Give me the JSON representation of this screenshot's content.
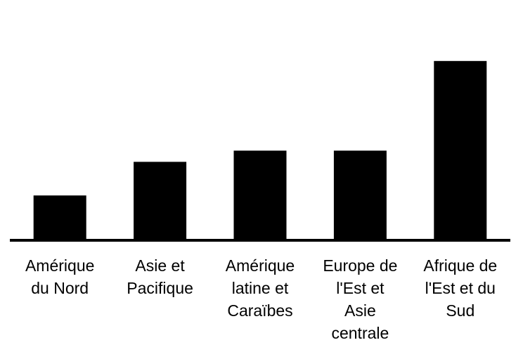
{
  "chart_data": {
    "type": "bar",
    "categories": [
      "Amérique\ndu Nord",
      "Asie et\nPacifique",
      "Amérique\nlatine et\nCaraïbes",
      "Europe de\nl'Est et\nAsie\ncentrale",
      "Afrique de\nl'Est et du\nSud"
    ],
    "values": [
      2,
      3.5,
      4,
      4,
      8
    ],
    "color": "#000000",
    "ylim": [
      0,
      10
    ]
  }
}
